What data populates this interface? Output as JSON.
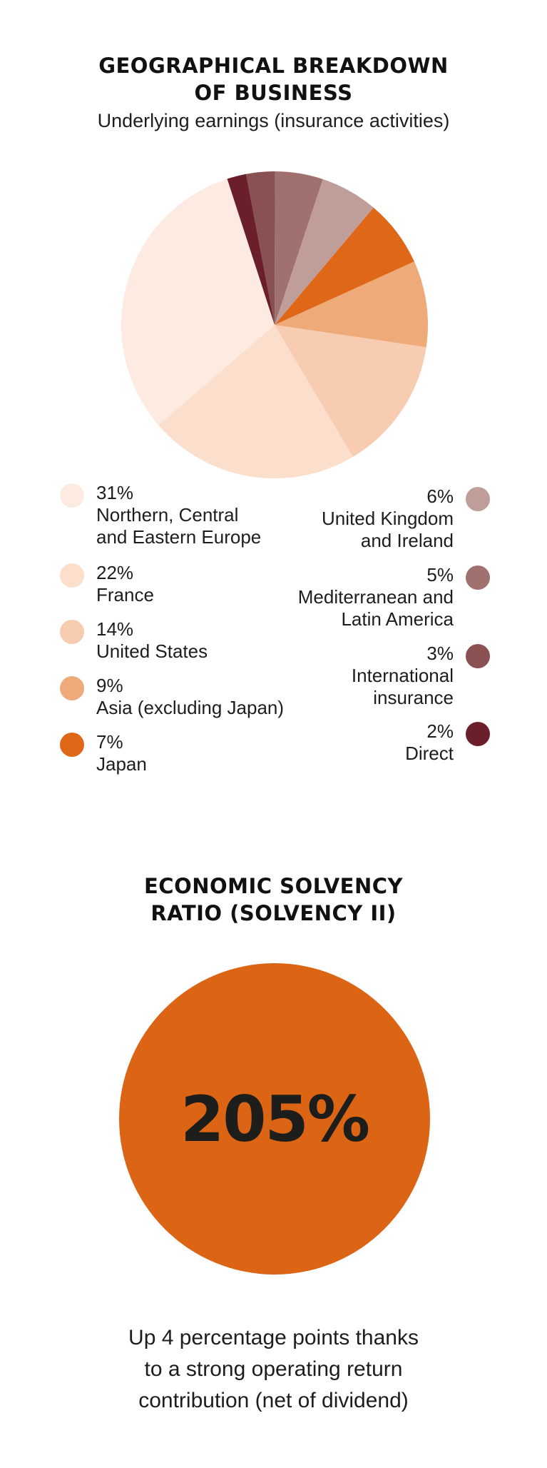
{
  "section1": {
    "title_line1": "GEOGRAPHICAL BREAKDOWN",
    "title_line2": "OF BUSINESS",
    "subtitle": "Underlying earnings (insurance activities)"
  },
  "chart_data": {
    "type": "pie",
    "title": "GEOGRAPHICAL BREAKDOWN OF BUSINESS",
    "subtitle": "Underlying earnings (insurance activities)",
    "slices": [
      {
        "label": "Northern, Central and Eastern Europe",
        "value": 31,
        "display": "31%",
        "color": "#fdebe2"
      },
      {
        "label": "France",
        "value": 22,
        "display": "22%",
        "color": "#fcdecd"
      },
      {
        "label": "United States",
        "value": 14,
        "display": "14%",
        "color": "#f8ccb1"
      },
      {
        "label": "Asia (excluding Japan)",
        "value": 9,
        "display": "9%",
        "color": "#eeaa79"
      },
      {
        "label": "Japan",
        "value": 7,
        "display": "7%",
        "color": "#df6818"
      },
      {
        "label": "United Kingdom and Ireland",
        "value": 6,
        "display": "6%",
        "color": "#bf9d99"
      },
      {
        "label": "Mediterranean and Latin America",
        "value": 5,
        "display": "5%",
        "color": "#a0716f"
      },
      {
        "label": "International insurance",
        "value": 3,
        "display": "3%",
        "color": "#8a5153"
      },
      {
        "label": "Direct",
        "value": 2,
        "display": "2%",
        "color": "#6a1f2b"
      }
    ],
    "legend_placement": "below"
  },
  "legend": {
    "left": [
      {
        "pct": "31%",
        "label": "Northern, Central\nand Eastern Europe"
      },
      {
        "pct": "22%",
        "label": "France"
      },
      {
        "pct": "14%",
        "label": "United States"
      },
      {
        "pct": "9%",
        "label": "Asia (excluding Japan)"
      },
      {
        "pct": "7%",
        "label": "Japan"
      }
    ],
    "right": [
      {
        "pct": "6%",
        "label": "United Kingdom\nand Ireland"
      },
      {
        "pct": "5%",
        "label": "Mediterranean and\nLatin America"
      },
      {
        "pct": "3%",
        "label": "International\ninsurance"
      },
      {
        "pct": "2%",
        "label": "Direct"
      }
    ]
  },
  "section2": {
    "title_line1": "ECONOMIC SOLVENCY",
    "title_line2": "RATIO (SOLVENCY II)",
    "value": "205%",
    "circle_color": "#db6515",
    "caption": "Up 4 percentage points thanks\nto a strong operating return\ncontribution (net of dividend)"
  }
}
